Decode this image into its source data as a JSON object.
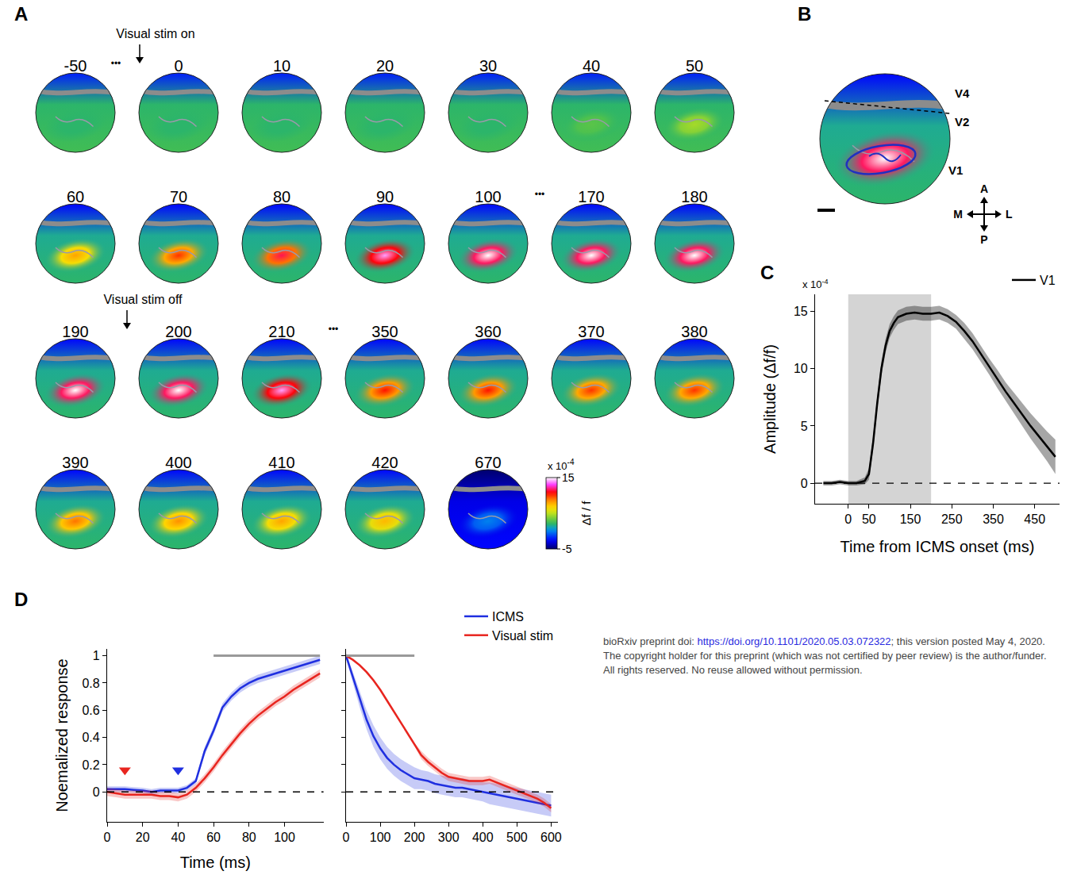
{
  "watermark": {
    "prefix": "bioRxiv preprint doi: ",
    "link": "https://doi.org/10.1101/2020.05.03.072322",
    "suffix": "; this version posted May 4, 2020. The copyright holder for this preprint (which was not certified by peer review) is the author/funder. All rights reserved. No reuse allowed without permission."
  },
  "panels": {
    "A": {
      "panel": "A",
      "ellipsis": "•••",
      "stim_on": {
        "label": "Visual stim on",
        "time": 0
      },
      "stim_off": {
        "label": "Visual stim off",
        "time": 200
      },
      "frames": [
        {
          "time": -50,
          "peak": 2,
          "ground": 2
        },
        {
          "time": 0,
          "peak": 2,
          "ground": 2,
          "ellipsis_before": true
        },
        {
          "time": 10,
          "peak": 2,
          "ground": 2
        },
        {
          "time": 20,
          "peak": 2,
          "ground": 2
        },
        {
          "time": 30,
          "peak": 2,
          "ground": 2
        },
        {
          "time": 40,
          "peak": 3,
          "ground": 2
        },
        {
          "time": 50,
          "peak": 4.5,
          "ground": 2
        },
        {
          "time": 60,
          "peak": 8,
          "ground": 1.5
        },
        {
          "time": 70,
          "peak": 10,
          "ground": 1.5
        },
        {
          "time": 80,
          "peak": 11.5,
          "ground": 1.5
        },
        {
          "time": 90,
          "peak": 14,
          "ground": 1.5
        },
        {
          "time": 100,
          "peak": 15,
          "ground": 1.5
        },
        {
          "time": 170,
          "peak": 15,
          "ground": 1.5,
          "ellipsis_before": true
        },
        {
          "time": 180,
          "peak": 15,
          "ground": 1.5
        },
        {
          "time": 190,
          "peak": 15,
          "ground": 1.5
        },
        {
          "time": 200,
          "peak": 15,
          "ground": 1.5
        },
        {
          "time": 210,
          "peak": 14,
          "ground": 1.5
        },
        {
          "time": 350,
          "peak": 10.5,
          "ground": 1.5,
          "ellipsis_before": true
        },
        {
          "time": 360,
          "peak": 10.5,
          "ground": 1.5
        },
        {
          "time": 370,
          "peak": 10,
          "ground": 1.5
        },
        {
          "time": 380,
          "peak": 10,
          "ground": 1.5
        },
        {
          "time": 390,
          "peak": 9,
          "ground": 1.5
        },
        {
          "time": 400,
          "peak": 8.5,
          "ground": 1.5
        },
        {
          "time": 410,
          "peak": 8,
          "ground": 1.5
        },
        {
          "time": 420,
          "peak": 7.5,
          "ground": 1.5
        },
        {
          "time": 670,
          "peak": 0,
          "ground": -3
        }
      ],
      "colorbar": {
        "label": "Δf / f",
        "multiplier": "x 10",
        "exponent": "-4",
        "range": [
          -5,
          15
        ],
        "ticks": [
          15,
          -5
        ]
      }
    },
    "B": {
      "panel": "B",
      "frame": {
        "peak": 15,
        "ground": 1.5
      },
      "areas": [
        "V4",
        "V2",
        "V1"
      ],
      "compass": {
        "anterior": "A",
        "posterior": "P",
        "medial": "M",
        "lateral": "L"
      }
    }
  },
  "chart_data": [
    {
      "panel": "C",
      "type": "line",
      "xlabel": "Time from ICMS onset (ms)",
      "ylabel": "Amplitude (Δf/f)",
      "multiplier": "x 10",
      "exponent": "-4",
      "xlim": [
        -80,
        510
      ],
      "xticks": [
        0,
        50,
        150,
        250,
        350,
        450
      ],
      "ylim": [
        -1.8,
        16.5
      ],
      "yticks": [
        0,
        5,
        10,
        15
      ],
      "grid": false,
      "legend": "top right",
      "shaded": {
        "x": [
          0,
          200
        ]
      },
      "reference_line": {
        "y": 0,
        "line_style": "dashed"
      },
      "series": [
        {
          "name": "V1",
          "color": "#000000",
          "x": [
            -60,
            -40,
            -20,
            0,
            20,
            40,
            50,
            60,
            70,
            80,
            90,
            100,
            110,
            120,
            140,
            160,
            180,
            200,
            220,
            240,
            260,
            280,
            300,
            320,
            340,
            360,
            380,
            400,
            420,
            440,
            460,
            480,
            500
          ],
          "values": [
            0,
            0,
            0.1,
            0,
            0,
            0.2,
            0.8,
            3.5,
            7,
            10,
            12,
            13.3,
            14,
            14.5,
            14.8,
            14.9,
            14.8,
            14.8,
            14.9,
            14.6,
            14.1,
            13.3,
            12.4,
            11.3,
            10.2,
            9.1,
            8,
            7,
            6,
            5,
            4.1,
            3.2,
            2.3
          ],
          "error": [
            0.2,
            0.2,
            0.2,
            0.2,
            0.2,
            0.3,
            0.5,
            0.6,
            0.6,
            0.6,
            0.6,
            0.6,
            0.6,
            0.6,
            0.6,
            0.6,
            0.6,
            0.6,
            0.6,
            0.6,
            0.6,
            0.7,
            0.7,
            0.7,
            0.7,
            0.8,
            0.8,
            0.9,
            1,
            1.1,
            1.2,
            1.3,
            1.5
          ]
        }
      ]
    },
    {
      "panel": "D",
      "type": "line",
      "ylabel": "Noemalized response",
      "ylim": [
        -0.22,
        1.05
      ],
      "yticks": [
        0,
        0.2,
        0.4,
        0.6,
        0.8,
        1
      ],
      "grid": false,
      "legend": "top right",
      "reference_line": {
        "y": 0,
        "line_style": "dashed"
      },
      "subplots": [
        {
          "xlabel": "Time (ms)",
          "xlim": [
            0,
            122
          ],
          "xticks": [
            0,
            20,
            40,
            60,
            80,
            100
          ],
          "significance": {
            "x": [
              60,
              120
            ],
            "y": 1
          },
          "markers": {
            "marker": "triangle-down",
            "points": [
              {
                "x": 10,
                "y": 0.16,
                "color": "#e8251f"
              },
              {
                "x": 40,
                "y": 0.16,
                "color": "#1f2fe0"
              }
            ]
          },
          "series": [
            {
              "name": "ICMS",
              "color": "#1f2fe0",
              "x": [
                0,
                5,
                10,
                15,
                20,
                25,
                30,
                35,
                40,
                45,
                50,
                55,
                60,
                65,
                70,
                75,
                80,
                85,
                90,
                95,
                100,
                105,
                110,
                115,
                120
              ],
              "values": [
                0.02,
                0.02,
                0.02,
                0.015,
                0.01,
                0,
                0.01,
                0.01,
                0.01,
                0.03,
                0.08,
                0.3,
                0.45,
                0.62,
                0.7,
                0.76,
                0.8,
                0.83,
                0.85,
                0.87,
                0.89,
                0.91,
                0.93,
                0.95,
                0.97
              ],
              "error": [
                0.02,
                0.02,
                0.02,
                0.02,
                0.02,
                0.02,
                0.02,
                0.02,
                0.02,
                0.02,
                0.02,
                0.03,
                0.03,
                0.03,
                0.03,
                0.03,
                0.03,
                0.03,
                0.03,
                0.03,
                0.03,
                0.03,
                0.03,
                0.03,
                0.03
              ]
            },
            {
              "name": "Visual stim",
              "color": "#e8251f",
              "x": [
                0,
                5,
                10,
                15,
                20,
                25,
                30,
                35,
                40,
                45,
                50,
                55,
                60,
                65,
                70,
                75,
                80,
                85,
                90,
                95,
                100,
                105,
                110,
                115,
                120
              ],
              "values": [
                0,
                -0.01,
                -0.02,
                -0.02,
                -0.02,
                -0.02,
                -0.03,
                -0.03,
                -0.04,
                -0.02,
                0.03,
                0.1,
                0.18,
                0.27,
                0.35,
                0.43,
                0.5,
                0.56,
                0.61,
                0.66,
                0.7,
                0.75,
                0.79,
                0.83,
                0.87
              ],
              "error": [
                0.03,
                0.03,
                0.03,
                0.03,
                0.03,
                0.03,
                0.03,
                0.03,
                0.03,
                0.03,
                0.03,
                0.03,
                0.03,
                0.03,
                0.03,
                0.03,
                0.03,
                0.03,
                0.03,
                0.03,
                0.03,
                0.03,
                0.03,
                0.03,
                0.03
              ]
            }
          ]
        },
        {
          "xlim": [
            0,
            620
          ],
          "xticks": [
            0,
            100,
            200,
            300,
            400,
            500,
            600
          ],
          "tick_labels": "x",
          "significance": {
            "x": [
              0,
              200
            ],
            "y": 1
          },
          "series": [
            {
              "name": "ICMS",
              "color": "#1f2fe0",
              "x": [
                0,
                20,
                40,
                60,
                80,
                100,
                120,
                140,
                160,
                180,
                200,
                220,
                240,
                260,
                280,
                300,
                320,
                340,
                360,
                380,
                400,
                420,
                440,
                460,
                480,
                500,
                520,
                540,
                560,
                580,
                600
              ],
              "values": [
                1,
                0.84,
                0.68,
                0.53,
                0.41,
                0.32,
                0.25,
                0.2,
                0.16,
                0.13,
                0.1,
                0.09,
                0.08,
                0.06,
                0.05,
                0.04,
                0.03,
                0.03,
                0.02,
                0.01,
                0,
                -0.01,
                -0.02,
                -0.03,
                -0.04,
                -0.05,
                -0.06,
                -0.07,
                -0.08,
                -0.09,
                -0.1
              ],
              "error": [
                0.02,
                0.04,
                0.06,
                0.07,
                0.08,
                0.08,
                0.08,
                0.08,
                0.08,
                0.08,
                0.08,
                0.07,
                0.07,
                0.07,
                0.07,
                0.07,
                0.07,
                0.07,
                0.07,
                0.07,
                0.07,
                0.08,
                0.08,
                0.08,
                0.08,
                0.08,
                0.08,
                0.08,
                0.08,
                0.08,
                0.08
              ]
            },
            {
              "name": "Visual stim",
              "color": "#e8251f",
              "x": [
                0,
                20,
                40,
                60,
                80,
                100,
                120,
                140,
                160,
                180,
                200,
                220,
                240,
                260,
                280,
                300,
                320,
                340,
                360,
                380,
                400,
                420,
                440,
                460,
                480,
                500,
                520,
                540,
                560,
                580,
                600
              ],
              "values": [
                1,
                0.97,
                0.93,
                0.88,
                0.82,
                0.75,
                0.67,
                0.59,
                0.51,
                0.43,
                0.35,
                0.27,
                0.22,
                0.18,
                0.14,
                0.11,
                0.1,
                0.09,
                0.08,
                0.08,
                0.08,
                0.09,
                0.07,
                0.05,
                0.03,
                0.01,
                -0.01,
                -0.03,
                -0.05,
                -0.08,
                -0.12
              ],
              "error": [
                0.01,
                0.01,
                0.01,
                0.01,
                0.01,
                0.01,
                0.01,
                0.01,
                0.01,
                0.01,
                0.01,
                0.03,
                0.03,
                0.03,
                0.03,
                0.03,
                0.03,
                0.03,
                0.03,
                0.03,
                0.03,
                0.03,
                0.03,
                0.03,
                0.03,
                0.03,
                0.03,
                0.03,
                0.03,
                0.03,
                0.03
              ]
            }
          ]
        }
      ]
    }
  ]
}
